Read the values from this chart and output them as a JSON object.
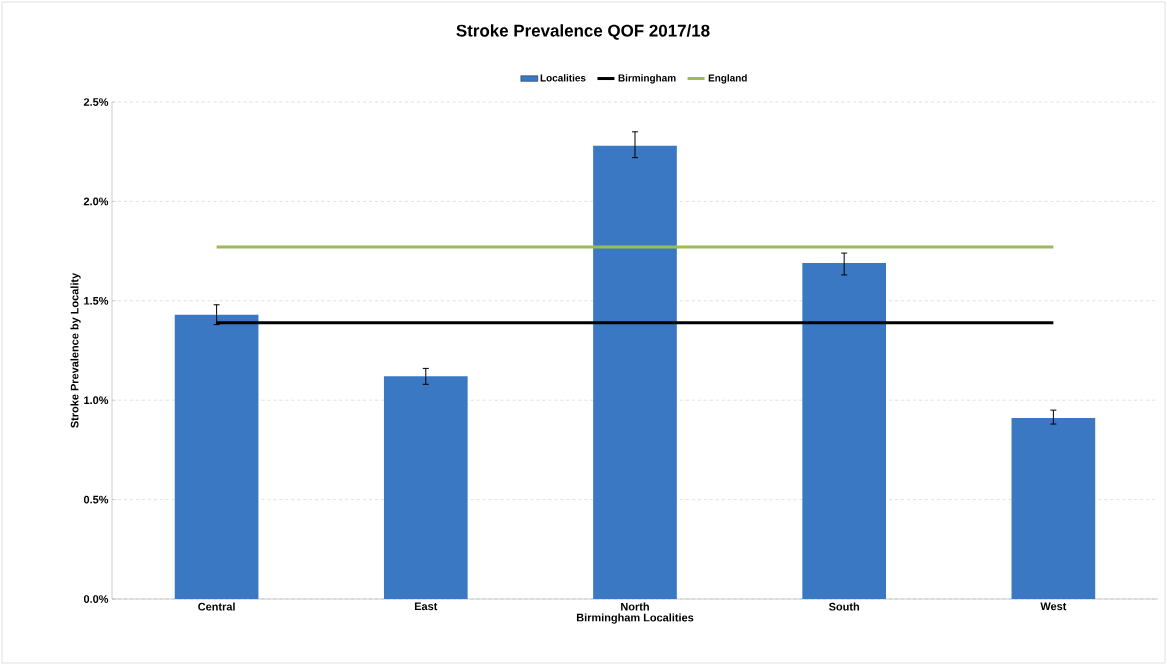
{
  "chart_data": {
    "type": "bar",
    "title": "Stroke Prevalence QOF 2017/18",
    "xlabel": "Birmingham Localities",
    "ylabel": "Stroke Prevalence by Locality",
    "categories": [
      "Central",
      "East",
      "North",
      "South",
      "West"
    ],
    "series": [
      {
        "name": "Localities",
        "color": "#3a78c4",
        "values": [
          1.43,
          1.12,
          2.28,
          1.69,
          0.91
        ],
        "errors": [
          [
            1.38,
            1.48
          ],
          [
            1.08,
            1.16
          ],
          [
            2.22,
            2.35
          ],
          [
            1.63,
            1.74
          ],
          [
            0.88,
            0.95
          ]
        ]
      },
      {
        "name": "Birmingham",
        "type": "line",
        "color": "#000000",
        "values": [
          1.39,
          1.39,
          1.39,
          1.39,
          1.39
        ]
      },
      {
        "name": "England",
        "type": "line",
        "color": "#9bbb59",
        "values": [
          1.77,
          1.77,
          1.77,
          1.77,
          1.77
        ]
      }
    ],
    "ylim": [
      0,
      2.5
    ],
    "yticks": [
      {
        "value": 0,
        "label": "0.0%"
      },
      {
        "value": 0.5,
        "label": "0.5%"
      },
      {
        "value": 1,
        "label": "1.0%"
      },
      {
        "value": 1.5,
        "label": "1.5%"
      },
      {
        "value": 2,
        "label": "2.0%"
      },
      {
        "value": 2.5,
        "label": "2.5%"
      }
    ],
    "grid": "y",
    "legend": "top",
    "marker": "none"
  }
}
